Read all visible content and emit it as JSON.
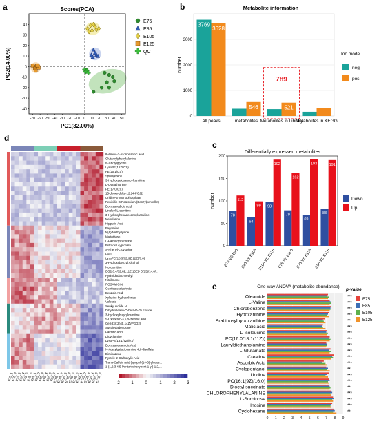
{
  "panel_labels": {
    "a": "a",
    "b": "b",
    "c": "c",
    "d": "d",
    "e": "e"
  },
  "chart_data": [
    {
      "id": "a",
      "type": "scatter",
      "title": "Scores(PCA)",
      "xlabel": "PC1(32.00%)",
      "ylabel": "PC2(14.00%)",
      "xlim": [
        -75,
        55
      ],
      "ylim": [
        -45,
        50
      ],
      "xticks": [
        -70,
        -60,
        -50,
        -40,
        -30,
        -20,
        -10,
        0,
        10,
        20,
        30,
        40,
        50
      ],
      "yticks": [
        -40,
        -30,
        -20,
        -10,
        0,
        10,
        20,
        30,
        40
      ],
      "legend_position": "right",
      "series": [
        {
          "name": "E75",
          "color": "#2e8b2e",
          "marker": "circle",
          "points": [
            [
              27,
              -6
            ],
            [
              33,
              -8
            ],
            [
              38,
              -10
            ],
            [
              30,
              -15
            ],
            [
              40,
              -14
            ],
            [
              33,
              -20
            ],
            [
              23,
              -20
            ],
            [
              12,
              -24
            ]
          ]
        },
        {
          "name": "E85",
          "color": "#2f5bb5",
          "marker": "triangle",
          "points": [
            [
              9,
              11
            ],
            [
              12,
              16
            ],
            [
              14,
              13
            ],
            [
              16,
              11
            ],
            [
              11,
              9
            ],
            [
              18,
              10
            ]
          ]
        },
        {
          "name": "E105",
          "color": "#e6d24a",
          "marker": "diamond",
          "points": [
            [
              4,
              36
            ],
            [
              8,
              39
            ],
            [
              10,
              34
            ],
            [
              14,
              38
            ],
            [
              16,
              35
            ],
            [
              19,
              36
            ],
            [
              12,
              40
            ],
            [
              6,
              33
            ]
          ]
        },
        {
          "name": "E125",
          "color": "#e69a2e",
          "marker": "square",
          "points": [
            [
              -70,
              1
            ],
            [
              -65,
              0
            ],
            [
              -67,
              -2
            ],
            [
              -63,
              0
            ],
            [
              -66,
              -4
            ],
            [
              -62,
              -1
            ],
            [
              -64,
              1
            ]
          ]
        },
        {
          "name": "QC",
          "color": "#3cbf3c",
          "marker": "plus",
          "points": [
            [
              0,
              -3
            ],
            [
              2,
              -4
            ],
            [
              3,
              -4
            ],
            [
              1,
              -5
            ],
            [
              5,
              -6
            ]
          ]
        }
      ]
    },
    {
      "id": "b",
      "type": "bar",
      "title": "Metabolite information",
      "xlabel": "",
      "ylabel": "number",
      "ylim": [
        0,
        4000
      ],
      "yticks": [
        0,
        1000,
        2000,
        3000
      ],
      "categories": [
        "All peaks",
        "metabolites",
        "Metabolites in Library",
        "Metabolites in KEGG"
      ],
      "legend_title": "Ion mode",
      "legend_position": "right",
      "series": [
        {
          "name": "neg",
          "color": "#1aa39a",
          "values": [
            3769,
            284,
            268,
            164
          ]
        },
        {
          "name": "pos",
          "color": "#f28a1c",
          "values": [
            3628,
            546,
            521,
            310
          ]
        }
      ],
      "annotation": {
        "text": "789",
        "category": "Metabolites in Library",
        "color": "#e8262c"
      }
    },
    {
      "id": "c",
      "type": "bar",
      "title": "Differentially expressed  metabolites",
      "xlabel": "",
      "ylabel": "number",
      "ylim": [
        0,
        200
      ],
      "yticks": [
        0,
        50,
        100,
        150,
        200
      ],
      "categories": [
        "E75 VS E85",
        "E85 VS E105",
        "E105 VS E125",
        "E75 VS E105",
        "E75 VS E125",
        "E85 VS E125"
      ],
      "legend_position": "right",
      "series": [
        {
          "name": "Down",
          "color": "#2f4fa0",
          "values": [
            78,
            64,
            98,
            79,
            69,
            83
          ]
        },
        {
          "name": "Up",
          "color": "#e8111b",
          "values": [
            112,
            99,
            192,
            162,
            193,
            191
          ]
        }
      ]
    },
    {
      "id": "d",
      "type": "heatmap",
      "columns": [
        "E75_1",
        "E75_2",
        "E75_3",
        "E75_4",
        "E75_5",
        "E75_6",
        "E85_1",
        "E85_2",
        "E85_3",
        "E85_4",
        "E85_5",
        "E85_6",
        "E105_1",
        "E105_2",
        "E105_3",
        "E105_4",
        "E105_5",
        "E105_6",
        "E125_1",
        "E125_2",
        "E125_3",
        "E125_4",
        "E125_5",
        "E125_6"
      ],
      "column_groups": [
        {
          "name": "E75",
          "color": "#7b86b8",
          "count": 6
        },
        {
          "name": "E85",
          "color": "#7dcfb6",
          "count": 6
        },
        {
          "name": "E105",
          "color": "#c8202c",
          "count": 6
        },
        {
          "name": "E125",
          "color": "#8a5a3a",
          "count": 6
        }
      ],
      "rows": [
        "8-Amino-7-oxononanoic acid",
        "Glutamylphenylalanine",
        "N-Cholylglycine",
        "LysoPE(16:0/0:0)",
        "PE(20:1/0:0)",
        "Sphingosine",
        "3-Hydroxyeicosanoylcarnitine",
        "L-Cystathionine",
        "PE(17:0/0:0)",
        "15-deoxy-delta-12,14-PGJ2",
        "Uridine-5'-Monophosphate",
        "Penicillin G Potassium (Benzylpenicillin)",
        "Docosanedioic acid",
        "Linoleyl-L-carnitine",
        "3-Hydroxyhexadecanoylcarnitine",
        "Nebularine",
        "Hippuric Acid",
        "Fagomine",
        "N(6)-Methyllysine",
        "Maltotriose",
        "L-Palmitoylcarnitine",
        "Estradiol cypionate",
        "S-Phenyl-L-cysteine",
        "FAD",
        "LysoPC(18:3(6Z,9Z,12Z)/0:0)",
        "3-Hydroxybenzyl Alcohol",
        "Norcarnitine",
        "DG(20:4/5Z,8Z,11Z,13E)+O(15)/14:0/...",
        "Pyrimidodiac-methyl",
        "Nitrilimone",
        "ROSAMICIN",
        "Gentisate aldehyde",
        "Benzoic Acid",
        "Xylazine hydrochloride",
        "Valerate",
        "Senkyunolide N",
        "Dihydrozeatin-O-beta-D-Glucoside",
        "3-Hydroxybutyrylcarnitine",
        "5-Oxooctan-3,6,8-trienoic acid",
        "Cer(d18:2(4E,14Z)/PGD2)",
        "Succinyladenosine",
        "Palmitic acid",
        "Dicyclomine",
        "LysoPS(18:1(9Z)/0:0)",
        "Docosahexaenoic Acid",
        "N-Acetylgalactosamine 4,6-disulfate",
        "Diminazene",
        "Pyrrole-2-Carboxylic Acid",
        "Trans-Caffeic acid (apopyl-(1->6)-glucos...",
        "1-(1,2,3,4,5-Pentahydroxypent-1-yl)-1,2,..."
      ],
      "row_groups": [
        {
          "color": "#e15a5a",
          "count": 17
        },
        {
          "color": "#7b86b8",
          "count": 12
        },
        {
          "color": "#f2a1a1",
          "count": 6
        },
        {
          "color": "#2b8a7e",
          "count": 7
        },
        {
          "color": "#7ec7e8",
          "count": 8
        }
      ],
      "color_scale": {
        "low": "#2d2f9a",
        "mid": "#f7f7f7",
        "high": "#b2182b",
        "ticks": [
          2,
          1,
          0,
          -1,
          -2,
          -3
        ]
      }
    },
    {
      "id": "e",
      "type": "bar",
      "orientation": "horizontal",
      "title": "One-way ANOVA (metabolite abundance)",
      "xlabel": "",
      "ylabel": "",
      "xlim": [
        0,
        9
      ],
      "xticks": [
        0,
        1,
        2,
        3,
        4,
        5,
        6,
        7,
        8,
        9
      ],
      "pvalue_header": "p-value",
      "legend_position": "top-right",
      "categories": [
        "Oleamide",
        "L-Valine",
        "Chlorobenzene",
        "Hypoxanthine",
        "Arabinosylhypoxanthine",
        "Malic acid",
        "L-Isoleucine",
        "PC(16:0/18:1(11Z))",
        "Lauryldiethanolamine",
        "L-Glutamate",
        "Creatine",
        "Ascorbic Acid",
        "Cyclopentanol",
        "Uridine",
        "PC(16:1(9Z)/16:0)",
        "Dioctyl succinate",
        "P-CHLOROPHENYLALANINE",
        "L-Sorbinose",
        "Inosine",
        "Cyclohexane"
      ],
      "significance": [
        "***",
        "***",
        "***",
        "***",
        "**",
        "***",
        "***",
        "***",
        "***",
        "***",
        "***",
        "***",
        "**",
        "***",
        "***",
        "**",
        "***",
        "***",
        "***",
        "**"
      ],
      "series": [
        {
          "name": "E75",
          "color": "#e5433a",
          "values": [
            7.2,
            7.4,
            7.6,
            7.3,
            6.8,
            6.6,
            7.1,
            7.4,
            7.0,
            7.5,
            7.9,
            6.7,
            7.0,
            7.3,
            7.3,
            7.3,
            7.6,
            7.8,
            7.7,
            7.9
          ]
        },
        {
          "name": "E85",
          "color": "#3d6fb5",
          "values": [
            7.1,
            7.5,
            7.5,
            7.2,
            6.6,
            6.5,
            7.0,
            7.3,
            7.1,
            7.3,
            7.7,
            6.5,
            7.2,
            7.1,
            7.4,
            7.4,
            7.7,
            7.9,
            7.6,
            8.0
          ]
        },
        {
          "name": "E105",
          "color": "#5db04c",
          "values": [
            7.3,
            7.6,
            7.5,
            7.1,
            6.7,
            6.6,
            7.2,
            7.5,
            7.1,
            7.6,
            7.8,
            6.9,
            7.1,
            6.9,
            7.2,
            7.5,
            7.5,
            7.7,
            7.5,
            7.8
          ]
        },
        {
          "name": "E125",
          "color": "#f0922a",
          "values": [
            7.2,
            7.4,
            7.4,
            7.3,
            6.9,
            6.9,
            7.1,
            7.4,
            7.0,
            7.4,
            7.6,
            7.1,
            7.4,
            7.2,
            7.3,
            7.4,
            7.6,
            7.8,
            7.6,
            8.2
          ]
        }
      ]
    }
  ]
}
